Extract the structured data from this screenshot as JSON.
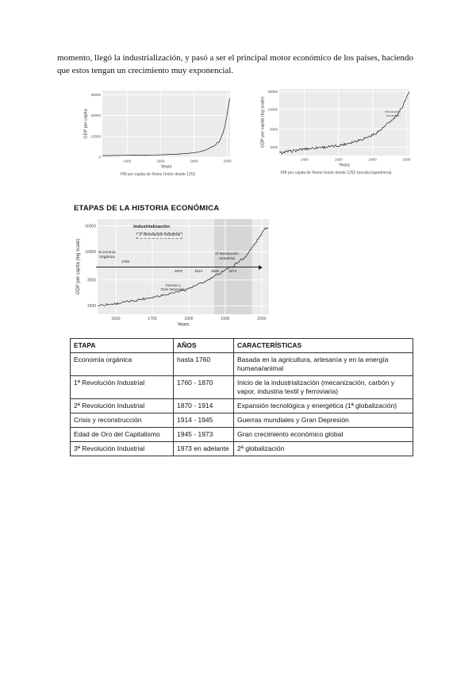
{
  "document": {
    "paragraph": "momento, llegó la industrialización, y pasó a ser el principal motor económico de los países, haciendo que estos tengan un crecimiento muy exponencial.",
    "section_title": "ETAPAS DE LA HISTORIA ECONÓMICA",
    "fig_left_caption": "PIB per cápita de Reino Unido desde 1252",
    "fig_right_caption": "PIB per cápita de Reino Unido desde 1252 (escala logarítmica)"
  },
  "chart_data": [
    {
      "id": "uk-gdp-linear",
      "type": "line",
      "title": "PIB per cápita de Reino Unido desde 1252",
      "xlabel": "Years",
      "ylabel": "GDP per capita",
      "scale": "linear",
      "xlim": [
        1252,
        2016
      ],
      "ylim": [
        0,
        32000
      ],
      "xticks": [
        1400,
        1600,
        1800,
        2000
      ],
      "yticks": [
        0,
        10000,
        20000,
        30000
      ],
      "grid": true,
      "panel_color": "#ebebeb",
      "line_color": "#1a1a1a",
      "noise": 0.02,
      "series": [
        {
          "name": "Reino Unido",
          "points": [
            [
              1252,
              700
            ],
            [
              1300,
              760
            ],
            [
              1350,
              820
            ],
            [
              1400,
              900
            ],
            [
              1450,
              950
            ],
            [
              1500,
              1000
            ],
            [
              1550,
              1020
            ],
            [
              1600,
              1100
            ],
            [
              1650,
              1250
            ],
            [
              1700,
              1450
            ],
            [
              1750,
              1700
            ],
            [
              1800,
              2080
            ],
            [
              1850,
              2900
            ],
            [
              1880,
              3800
            ],
            [
              1900,
              4700
            ],
            [
              1920,
              5300
            ],
            [
              1940,
              6900
            ],
            [
              1950,
              7300
            ],
            [
              1960,
              9000
            ],
            [
              1975,
              12000
            ],
            [
              1990,
              17000
            ],
            [
              2000,
              21500
            ],
            [
              2008,
              26000
            ],
            [
              2016,
              28000
            ]
          ]
        }
      ]
    },
    {
      "id": "uk-gdp-log",
      "type": "line",
      "title": "PIB per cápita de Reino Unido desde 1252 (escala logarítmica)",
      "xlabel": "Years",
      "ylabel": "GDP per capita (log scale)",
      "scale": "log",
      "xlim": [
        1252,
        2016
      ],
      "ylim": [
        600,
        35000
      ],
      "xticks": [
        1400,
        1600,
        1800,
        2000
      ],
      "yticks": [
        1000,
        3000,
        10000,
        30000
      ],
      "grid": true,
      "panel_color": "#ebebeb",
      "line_color": "#1a1a1a",
      "noise": 0.08,
      "annotations": {
        "rev": [
          "Revolución",
          "Industrial"
        ]
      },
      "series": [
        {
          "name": "Reino Unido",
          "points": [
            [
              1252,
              700
            ],
            [
              1300,
              760
            ],
            [
              1350,
              820
            ],
            [
              1400,
              900
            ],
            [
              1450,
              950
            ],
            [
              1500,
              1000
            ],
            [
              1550,
              1020
            ],
            [
              1600,
              1100
            ],
            [
              1650,
              1250
            ],
            [
              1700,
              1450
            ],
            [
              1750,
              1700
            ],
            [
              1800,
              2080
            ],
            [
              1850,
              2900
            ],
            [
              1880,
              3800
            ],
            [
              1900,
              4700
            ],
            [
              1920,
              5300
            ],
            [
              1940,
              6900
            ],
            [
              1950,
              7300
            ],
            [
              1960,
              9000
            ],
            [
              1975,
              12000
            ],
            [
              1990,
              17000
            ],
            [
              2000,
              21500
            ],
            [
              2008,
              26000
            ],
            [
              2016,
              28000
            ]
          ]
        }
      ]
    },
    {
      "id": "etapas-historia",
      "type": "line",
      "title": "ETAPAS DE LA HISTORIA ECONÓMICA",
      "xlabel": "Years",
      "ylabel": "GDP per capita (log scale)",
      "scale": "log",
      "xlim": [
        1550,
        2020
      ],
      "ylim": [
        700,
        40000
      ],
      "xticks": [
        1600,
        1700,
        1800,
        1900,
        2000
      ],
      "yticks": [
        1000,
        3000,
        10000,
        30000
      ],
      "grid": true,
      "panel_color": "#ebebeb",
      "shaded_region": [
        1870,
        1973
      ],
      "shaded_color": "#d6d6d6",
      "line_color": "#1a1a1a",
      "noise": 0.05,
      "annotations": {
        "industrializacion": "Industrialización",
        "rev1": "1ª Revolución Industrial",
        "rev2": [
          "2ª Revolución",
          "Industrial"
        ],
        "organica": [
          "Economía",
          "Orgánica"
        ],
        "crisis": [
          "Guerras y",
          "Gran Depresión"
        ],
        "years": [
          "1760",
          "1870",
          "1914",
          "1945",
          "1973"
        ]
      },
      "series": [
        {
          "name": "Reino Unido",
          "points": [
            [
              1550,
              1020
            ],
            [
              1600,
              1100
            ],
            [
              1650,
              1250
            ],
            [
              1700,
              1450
            ],
            [
              1750,
              1700
            ],
            [
              1800,
              2080
            ],
            [
              1850,
              2900
            ],
            [
              1880,
              3800
            ],
            [
              1900,
              4700
            ],
            [
              1920,
              5300
            ],
            [
              1940,
              6900
            ],
            [
              1950,
              7300
            ],
            [
              1960,
              9000
            ],
            [
              1975,
              12000
            ],
            [
              1990,
              17000
            ],
            [
              2000,
              21500
            ],
            [
              2008,
              26000
            ],
            [
              2016,
              28000
            ]
          ]
        }
      ]
    }
  ],
  "table": {
    "headers": [
      "ETAPA",
      "AÑOS",
      "CARACTERÍSTICAS"
    ],
    "rows": [
      [
        "Economía orgánica",
        "hasta 1760",
        "Basada en la agricultura, artesanía y en la energía humana/animal"
      ],
      [
        "1ª Revolución Industrial",
        "1760 - 1870",
        "Inicio de la industrialización (mecanización, carbón y vapor, industria textil y ferroviaria)"
      ],
      [
        "2ª Revolución Industrial",
        "1870 - 1914",
        "Expansión tecnológica y energética (1ª globalización)"
      ],
      [
        "Crisis y reconstrucción",
        "1914 - 1945",
        "Guerras mundiales y Gran Depresión"
      ],
      [
        "Edad de Oro del Capitalismo",
        "1945 - 1973",
        "Gran crecimiento económico global"
      ],
      [
        "3ª Revolución Industrial",
        "1973 en adelante",
        "2ª globalización"
      ]
    ]
  }
}
